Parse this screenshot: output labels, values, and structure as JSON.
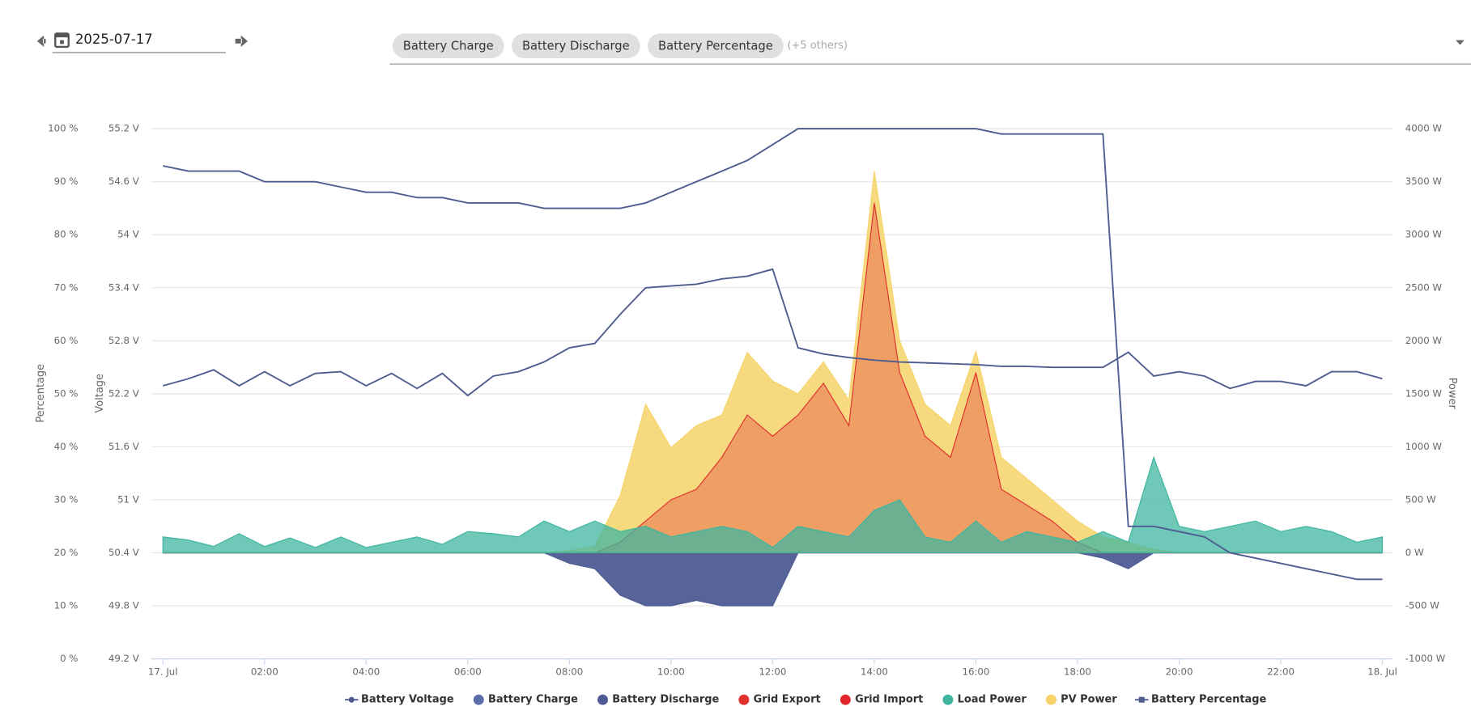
{
  "toolbar": {
    "date": "2025-07-17",
    "chips": [
      "Battery Charge",
      "Battery Discharge",
      "Battery Percentage"
    ],
    "more": "(+5 others)"
  },
  "chart_data": {
    "type": "line",
    "x": [
      0,
      0.5,
      1,
      1.5,
      2,
      2.5,
      3,
      3.5,
      4,
      4.5,
      5,
      5.5,
      6,
      6.5,
      7,
      7.5,
      8,
      8.5,
      9,
      9.5,
      10,
      10.5,
      11,
      11.5,
      12,
      12.5,
      13,
      13.5,
      14,
      14.5,
      15,
      15.5,
      16,
      16.5,
      17,
      17.5,
      18,
      18.5,
      19,
      19.5,
      20,
      20.5,
      21,
      21.5,
      22,
      22.5,
      23,
      23.5,
      24
    ],
    "xlim": [
      0,
      24
    ],
    "xticks": [
      {
        "value": 0,
        "label": "17. Jul"
      },
      {
        "value": 2,
        "label": "02:00"
      },
      {
        "value": 4,
        "label": "04:00"
      },
      {
        "value": 6,
        "label": "06:00"
      },
      {
        "value": 8,
        "label": "08:00"
      },
      {
        "value": 10,
        "label": "10:00"
      },
      {
        "value": 12,
        "label": "12:00"
      },
      {
        "value": 14,
        "label": "14:00"
      },
      {
        "value": 16,
        "label": "16:00"
      },
      {
        "value": 18,
        "label": "18:00"
      },
      {
        "value": 20,
        "label": "20:00"
      },
      {
        "value": 22,
        "label": "22:00"
      },
      {
        "value": 24,
        "label": "18. Jul"
      }
    ],
    "ylabel": "Percentage",
    "ylim": [
      0,
      100
    ],
    "yticks": [
      {
        "value": 0,
        "label": "0 %"
      },
      {
        "value": 10,
        "label": "10 %"
      },
      {
        "value": 20,
        "label": "20 %"
      },
      {
        "value": 30,
        "label": "30 %"
      },
      {
        "value": 40,
        "label": "40 %"
      },
      {
        "value": 50,
        "label": "50 %"
      },
      {
        "value": 60,
        "label": "60 %"
      },
      {
        "value": 70,
        "label": "70 %"
      },
      {
        "value": 80,
        "label": "80 %"
      },
      {
        "value": 90,
        "label": "90 %"
      },
      {
        "value": 100,
        "label": "100 %"
      }
    ],
    "y2label": "Voltage",
    "y2lim": [
      49.2,
      55.2
    ],
    "y2ticks": [
      {
        "value": 49.2,
        "label": "49.2 V"
      },
      {
        "value": 49.8,
        "label": "49.8 V"
      },
      {
        "value": 50.4,
        "label": "50.4 V"
      },
      {
        "value": 51,
        "label": "51 V"
      },
      {
        "value": 51.6,
        "label": "51.6 V"
      },
      {
        "value": 52.2,
        "label": "52.2 V"
      },
      {
        "value": 52.8,
        "label": "52.8 V"
      },
      {
        "value": 53.4,
        "label": "53.4 V"
      },
      {
        "value": 54,
        "label": "54 V"
      },
      {
        "value": 54.6,
        "label": "54.6 V"
      },
      {
        "value": 55.2,
        "label": "55.2 V"
      }
    ],
    "y3label": "Power",
    "y3lim": [
      -1000,
      4000
    ],
    "y3ticks": [
      {
        "value": -1000,
        "label": "-1000 W"
      },
      {
        "value": -500,
        "label": "-500 W"
      },
      {
        "value": 0,
        "label": "0 W"
      },
      {
        "value": 500,
        "label": "500 W"
      },
      {
        "value": 1000,
        "label": "1000 W"
      },
      {
        "value": 1500,
        "label": "1500 W"
      },
      {
        "value": 2000,
        "label": "2000 W"
      },
      {
        "value": 2500,
        "label": "2500 W"
      },
      {
        "value": 3000,
        "label": "3000 W"
      },
      {
        "value": 3500,
        "label": "3500 W"
      },
      {
        "value": 4000,
        "label": "4000 W"
      }
    ],
    "grid": true,
    "legend": "bottom",
    "series": [
      {
        "name": "Battery Voltage",
        "color": "#4e5c8f",
        "axis": "y2",
        "style": "line",
        "values": [
          52.29,
          52.37,
          52.47,
          52.29,
          52.45,
          52.29,
          52.43,
          52.45,
          52.29,
          52.43,
          52.26,
          52.43,
          52.18,
          52.4,
          52.45,
          52.56,
          52.72,
          52.77,
          53.1,
          53.4,
          53.42,
          53.44,
          53.5,
          53.53,
          53.61,
          52.72,
          52.65,
          52.61,
          52.58,
          52.56,
          52.55,
          52.54,
          52.53,
          52.51,
          52.51,
          52.5,
          52.5,
          52.5,
          52.67,
          52.4,
          52.45,
          52.4,
          52.26,
          52.34,
          52.34,
          52.29,
          52.45,
          52.45,
          52.37
        ]
      },
      {
        "name": "Battery Charge",
        "color": "#5b6ea8",
        "axis": "y3",
        "style": "area",
        "values": [
          0,
          0,
          0,
          0,
          0,
          0,
          0,
          0,
          0,
          0,
          0,
          0,
          0,
          0,
          0,
          0,
          0,
          0,
          0,
          0,
          0,
          0,
          0,
          0,
          0,
          0,
          0,
          0,
          0,
          0,
          0,
          0,
          0,
          0,
          0,
          0,
          0,
          0,
          0,
          0,
          0,
          0,
          0,
          0,
          0,
          0,
          0,
          0,
          0
        ]
      },
      {
        "name": "Battery Discharge",
        "color": "#4e5c93",
        "axis": "y3",
        "style": "area",
        "values": [
          0,
          0,
          0,
          0,
          0,
          0,
          0,
          0,
          0,
          0,
          0,
          0,
          0,
          0,
          0,
          0,
          -100,
          -150,
          -400,
          -500,
          -500,
          -450,
          -500,
          -500,
          -500,
          0,
          0,
          0,
          0,
          0,
          0,
          0,
          0,
          0,
          0,
          0,
          0,
          -50,
          -150,
          0,
          0,
          0,
          0,
          0,
          0,
          0,
          0,
          0,
          0
        ]
      },
      {
        "name": "Grid Export",
        "color": "#e0302f",
        "axis": "y3",
        "style": "area",
        "values": [
          0,
          0,
          0,
          0,
          0,
          0,
          0,
          0,
          0,
          0,
          0,
          0,
          0,
          0,
          0,
          0,
          0,
          0,
          100,
          300,
          500,
          600,
          900,
          1300,
          1100,
          1300,
          1600,
          1200,
          3300,
          1700,
          1100,
          900,
          1700,
          600,
          450,
          300,
          100,
          0,
          0,
          0,
          0,
          0,
          0,
          0,
          0,
          0,
          0,
          0,
          0
        ]
      },
      {
        "name": "Grid Import",
        "color": "#e3262b",
        "axis": "y3",
        "style": "area",
        "values": [
          0,
          0,
          0,
          0,
          0,
          0,
          0,
          0,
          0,
          0,
          0,
          0,
          0,
          0,
          0,
          0,
          0,
          0,
          0,
          0,
          0,
          0,
          0,
          0,
          0,
          0,
          0,
          0,
          0,
          0,
          0,
          0,
          0,
          0,
          0,
          0,
          0,
          0,
          0,
          0,
          0,
          0,
          0,
          0,
          0,
          0,
          0,
          0,
          0
        ]
      },
      {
        "name": "Load Power",
        "color": "#3fb5a0",
        "axis": "y3",
        "style": "area",
        "values": [
          150,
          120,
          60,
          180,
          60,
          140,
          50,
          150,
          50,
          100,
          150,
          80,
          200,
          180,
          150,
          300,
          200,
          300,
          200,
          250,
          150,
          200,
          250,
          200,
          50,
          250,
          200,
          150,
          400,
          500,
          150,
          100,
          300,
          100,
          200,
          150,
          100,
          200,
          100,
          900,
          250,
          200,
          250,
          300,
          200,
          250,
          200,
          100,
          150
        ]
      },
      {
        "name": "PV Power",
        "color": "#f6d46a",
        "axis": "y3",
        "style": "area",
        "values": [
          0,
          0,
          0,
          0,
          0,
          0,
          0,
          0,
          0,
          0,
          0,
          0,
          0,
          0,
          0,
          0,
          20,
          60,
          540,
          1400,
          990,
          1200,
          1300,
          1890,
          1620,
          1500,
          1800,
          1440,
          3600,
          2000,
          1400,
          1200,
          1900,
          900,
          700,
          500,
          300,
          150,
          100,
          30,
          0,
          0,
          0,
          0,
          0,
          0,
          0,
          0,
          0
        ]
      },
      {
        "name": "Battery Percentage",
        "color": "#4e5c8f",
        "axis": "y",
        "style": "line",
        "values": [
          93,
          92,
          92,
          92,
          90,
          90,
          90,
          89,
          88,
          88,
          87,
          87,
          86,
          86,
          86,
          85,
          85,
          85,
          85,
          86,
          88,
          90,
          92,
          94,
          97,
          100,
          100,
          100,
          100,
          100,
          100,
          100,
          100,
          99,
          99,
          99,
          99,
          99,
          25,
          25,
          24,
          23,
          20,
          19,
          18,
          17,
          16,
          15,
          15
        ]
      }
    ]
  }
}
